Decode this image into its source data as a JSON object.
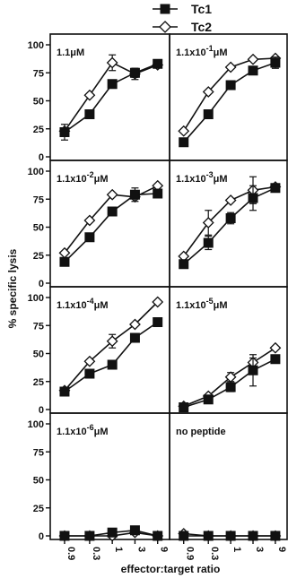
{
  "chart_data": {
    "type": "line",
    "ylabel": "% specific lysis",
    "xlabel": "effector:target ratio",
    "x_categories": [
      "0.9",
      "0.3",
      "1",
      "3",
      "9"
    ],
    "x_tick_labels": [
      "0.9",
      "0.3",
      "1",
      "3",
      "9"
    ],
    "y_ticks": [
      0,
      25,
      50,
      75,
      100
    ],
    "ylim": [
      0,
      100
    ],
    "legend": {
      "placement": "top-right",
      "entries": [
        {
          "name": "Tc1",
          "marker": "filled-square"
        },
        {
          "name": "Tc2",
          "marker": "open-diamond"
        }
      ]
    },
    "panels": [
      {
        "label_base": "1.1",
        "label_exp": "",
        "label_unit": "μM",
        "series": [
          {
            "name": "Tc1",
            "values": [
              22,
              38,
              65,
              75,
              83
            ],
            "errors": [
              7,
              0,
              0,
              4,
              3
            ]
          },
          {
            "name": "Tc2",
            "values": [
              23,
              55,
              84,
              74,
              82
            ],
            "errors": [
              0,
              0,
              7,
              5,
              0
            ]
          }
        ]
      },
      {
        "label_base": "1.1x10",
        "label_exp": "-1",
        "label_unit": "μM",
        "series": [
          {
            "name": "Tc1",
            "values": [
              13,
              38,
              64,
              77,
              84
            ],
            "errors": [
              0,
              0,
              0,
              0,
              5
            ]
          },
          {
            "name": "Tc2",
            "values": [
              23,
              58,
              80,
              87,
              88
            ],
            "errors": [
              0,
              0,
              0,
              0,
              0
            ]
          }
        ]
      },
      {
        "label_base": "1.1x10",
        "label_exp": "-2",
        "label_unit": "μM",
        "series": [
          {
            "name": "Tc1",
            "values": [
              19,
              41,
              64,
              79,
              80
            ],
            "errors": [
              0,
              0,
              0,
              6,
              0
            ]
          },
          {
            "name": "Tc2",
            "values": [
              27,
              56,
              79,
              77,
              87
            ],
            "errors": [
              0,
              0,
              0,
              0,
              0
            ]
          }
        ]
      },
      {
        "label_base": "1.1x10",
        "label_exp": "-3",
        "label_unit": "μM",
        "series": [
          {
            "name": "Tc1",
            "values": [
              17,
              36,
              58,
              76,
              85
            ],
            "errors": [
              0,
              6,
              5,
              11,
              0
            ]
          },
          {
            "name": "Tc2",
            "values": [
              24,
              54,
              74,
              83,
              86
            ],
            "errors": [
              0,
              11,
              0,
              12,
              0
            ]
          }
        ]
      },
      {
        "label_base": "1.1x10",
        "label_exp": "-4",
        "label_unit": "μM",
        "series": [
          {
            "name": "Tc1",
            "values": [
              16,
              32,
              40,
              64,
              78
            ],
            "errors": [
              0,
              0,
              0,
              0,
              0
            ]
          },
          {
            "name": "Tc2",
            "values": [
              17,
              43,
              61,
              76,
              96
            ],
            "errors": [
              0,
              0,
              6,
              0,
              0
            ]
          }
        ]
      },
      {
        "label_base": "1.1x10",
        "label_exp": "-5",
        "label_unit": "μM",
        "series": [
          {
            "name": "Tc1",
            "values": [
              2,
              9,
              20,
              35,
              45
            ],
            "errors": [
              0,
              0,
              4,
              14,
              0
            ]
          },
          {
            "name": "Tc2",
            "values": [
              3,
              12,
              29,
              42,
              55
            ],
            "errors": [
              0,
              0,
              4,
              4,
              0
            ]
          }
        ]
      },
      {
        "label_base": "1.1x10",
        "label_exp": "-6",
        "label_unit": "μM",
        "series": [
          {
            "name": "Tc1",
            "values": [
              0,
              0,
              3,
              5,
              0
            ],
            "errors": [
              0,
              0,
              0,
              3,
              0
            ]
          },
          {
            "name": "Tc2",
            "values": [
              0,
              0,
              0,
              3,
              0
            ],
            "errors": [
              0,
              0,
              0,
              0,
              0
            ]
          }
        ]
      },
      {
        "label_base": "no peptide",
        "label_exp": "",
        "label_unit": "",
        "series": [
          {
            "name": "Tc1",
            "values": [
              0,
              0,
              0,
              0,
              0
            ],
            "errors": [
              0,
              0,
              0,
              0,
              0
            ]
          },
          {
            "name": "Tc2",
            "values": [
              2,
              0,
              0,
              0,
              0
            ],
            "errors": [
              0,
              0,
              0,
              0,
              0
            ]
          }
        ]
      }
    ]
  }
}
